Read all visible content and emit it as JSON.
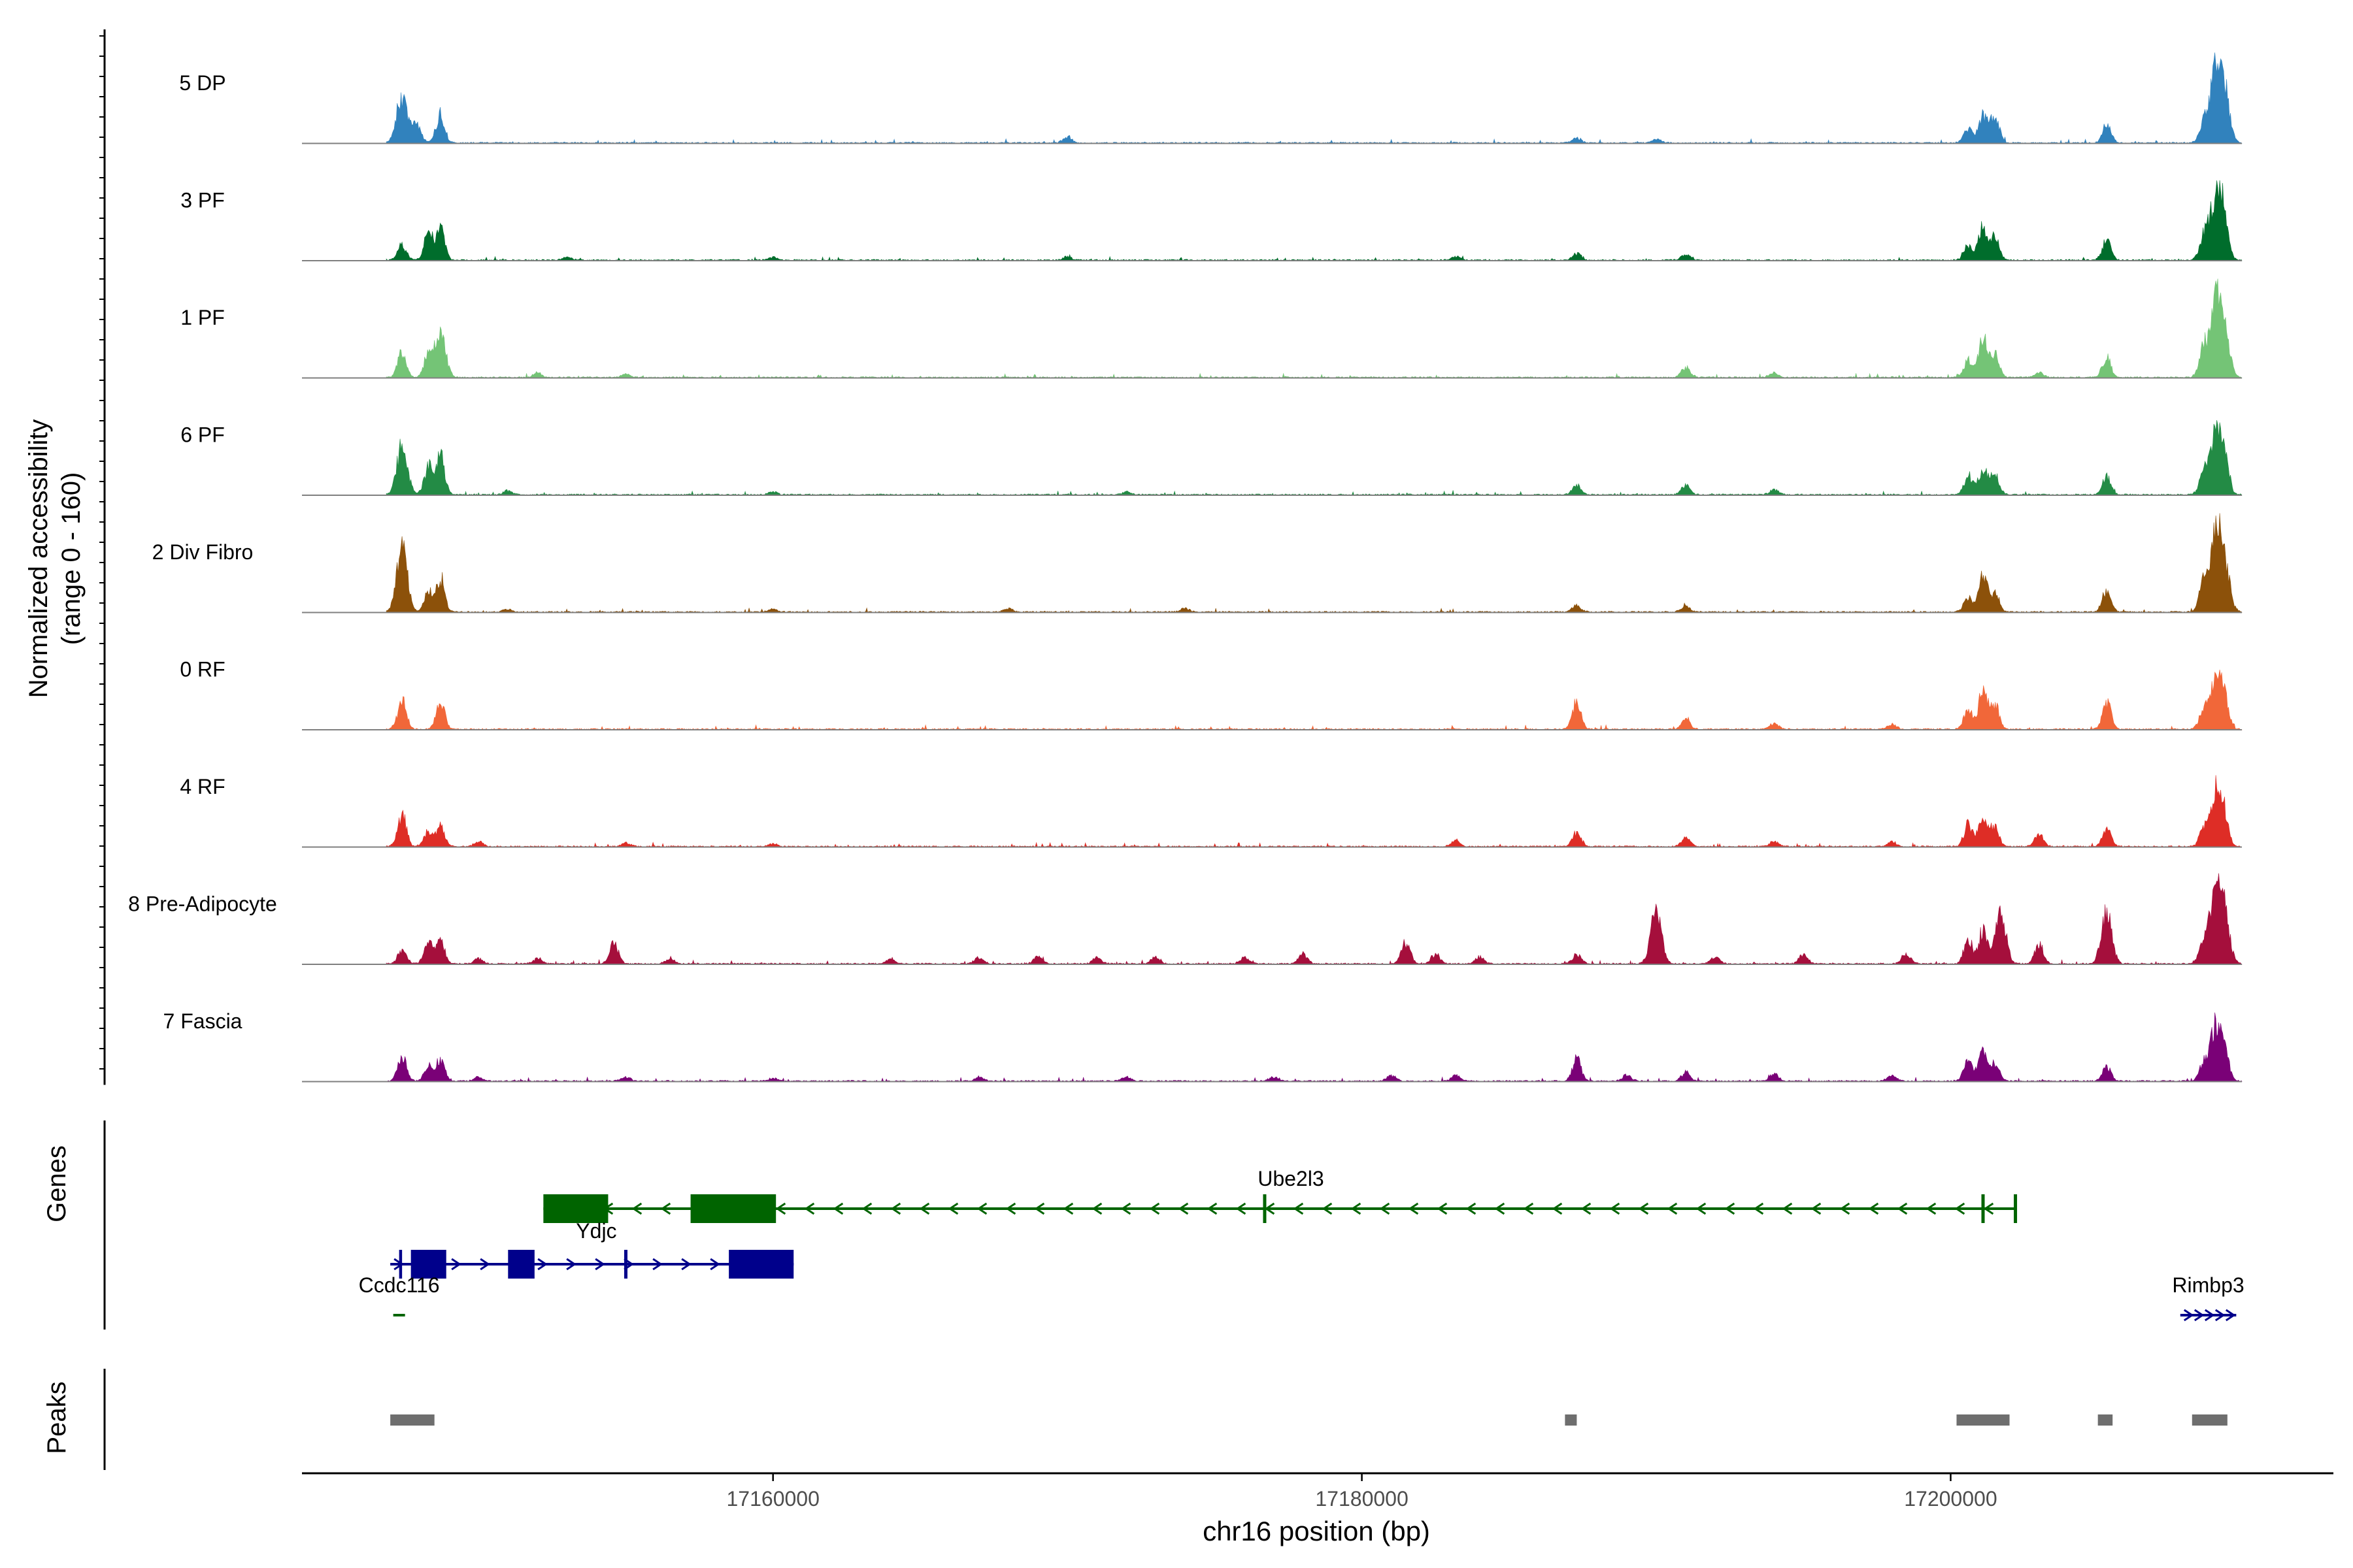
{
  "chart_data": {
    "type": "area",
    "chromosome": "chr16",
    "xlabel": "chr16 position (bp)",
    "ylabel_line1": "Normalized accessibility",
    "ylabel_line2": "(range 0 - 160)",
    "y_range": [
      0,
      160
    ],
    "x_range": [
      17144000,
      17213000
    ],
    "x_ticks": [
      17160000,
      17180000,
      17200000
    ],
    "x_tick_labels": [
      "17160000",
      "17180000",
      "17200000"
    ],
    "grid": false,
    "tracks": [
      {
        "name": "5 DP",
        "color": "#3182bd",
        "peaks": [
          [
            17147400,
            100
          ],
          [
            17148700,
            60
          ],
          [
            17147900,
            35
          ],
          [
            17170000,
            12
          ],
          [
            17187300,
            10
          ],
          [
            17190000,
            8
          ],
          [
            17201100,
            55
          ],
          [
            17201500,
            60
          ],
          [
            17200600,
            30
          ],
          [
            17205300,
            38
          ],
          [
            17208600,
            40
          ],
          [
            17209000,
            150
          ],
          [
            17209300,
            95
          ]
        ]
      },
      {
        "name": "3 PF",
        "color": "#006d2c",
        "peaks": [
          [
            17147400,
            30
          ],
          [
            17148300,
            55
          ],
          [
            17148700,
            65
          ],
          [
            17153000,
            6
          ],
          [
            17160000,
            6
          ],
          [
            17170000,
            7
          ],
          [
            17183200,
            8
          ],
          [
            17187300,
            14
          ],
          [
            17191000,
            12
          ],
          [
            17201100,
            70
          ],
          [
            17201500,
            45
          ],
          [
            17200600,
            30
          ],
          [
            17205300,
            40
          ],
          [
            17208600,
            50
          ],
          [
            17209000,
            130
          ],
          [
            17209300,
            80
          ]
        ]
      },
      {
        "name": "1 PF",
        "color": "#74c476",
        "peaks": [
          [
            17147400,
            50
          ],
          [
            17148300,
            45
          ],
          [
            17148700,
            90
          ],
          [
            17152000,
            10
          ],
          [
            17155000,
            6
          ],
          [
            17191000,
            20
          ],
          [
            17194000,
            10
          ],
          [
            17201100,
            80
          ],
          [
            17201500,
            50
          ],
          [
            17200600,
            35
          ],
          [
            17203000,
            10
          ],
          [
            17205300,
            40
          ],
          [
            17208600,
            60
          ],
          [
            17209000,
            140
          ],
          [
            17209300,
            90
          ]
        ]
      },
      {
        "name": "6 PF",
        "color": "#238b45",
        "peaks": [
          [
            17147400,
            100
          ],
          [
            17148300,
            55
          ],
          [
            17148700,
            80
          ],
          [
            17151000,
            8
          ],
          [
            17160000,
            6
          ],
          [
            17172000,
            6
          ],
          [
            17187300,
            18
          ],
          [
            17191000,
            20
          ],
          [
            17194000,
            10
          ],
          [
            17201100,
            55
          ],
          [
            17201500,
            45
          ],
          [
            17200600,
            40
          ],
          [
            17205300,
            35
          ],
          [
            17208600,
            45
          ],
          [
            17209000,
            120
          ],
          [
            17209300,
            80
          ]
        ]
      },
      {
        "name": "2 Div Fibro",
        "color": "#8c510a",
        "peaks": [
          [
            17147400,
            125
          ],
          [
            17148300,
            40
          ],
          [
            17148700,
            70
          ],
          [
            17151000,
            6
          ],
          [
            17160000,
            6
          ],
          [
            17168000,
            7
          ],
          [
            17174000,
            7
          ],
          [
            17187300,
            14
          ],
          [
            17191000,
            12
          ],
          [
            17201100,
            75
          ],
          [
            17201500,
            40
          ],
          [
            17200600,
            30
          ],
          [
            17205300,
            45
          ],
          [
            17208600,
            60
          ],
          [
            17209000,
            150
          ],
          [
            17209300,
            90
          ]
        ]
      },
      {
        "name": "0 RF",
        "color": "#f16739",
        "peaks": [
          [
            17147400,
            60
          ],
          [
            17148700,
            55
          ],
          [
            17187300,
            55
          ],
          [
            17191000,
            20
          ],
          [
            17194000,
            12
          ],
          [
            17198000,
            10
          ],
          [
            17201100,
            80
          ],
          [
            17201500,
            50
          ],
          [
            17200600,
            40
          ],
          [
            17205300,
            55
          ],
          [
            17208600,
            40
          ],
          [
            17209000,
            110
          ],
          [
            17209300,
            60
          ]
        ]
      },
      {
        "name": "4 RF",
        "color": "#de2d26",
        "peaks": [
          [
            17147400,
            65
          ],
          [
            17148300,
            30
          ],
          [
            17148700,
            40
          ],
          [
            17150000,
            10
          ],
          [
            17155000,
            8
          ],
          [
            17160000,
            6
          ],
          [
            17183200,
            12
          ],
          [
            17187300,
            30
          ],
          [
            17191000,
            18
          ],
          [
            17194000,
            10
          ],
          [
            17198000,
            10
          ],
          [
            17201100,
            65
          ],
          [
            17201500,
            40
          ],
          [
            17200600,
            45
          ],
          [
            17203000,
            25
          ],
          [
            17205300,
            35
          ],
          [
            17208600,
            35
          ],
          [
            17209000,
            110
          ],
          [
            17209300,
            60
          ]
        ]
      },
      {
        "name": "8 Pre-Adipocyte",
        "color": "#a50f3c",
        "peaks": [
          [
            17147400,
            30
          ],
          [
            17148300,
            40
          ],
          [
            17148700,
            50
          ],
          [
            17150000,
            10
          ],
          [
            17152000,
            12
          ],
          [
            17154600,
            45
          ],
          [
            17156500,
            12
          ],
          [
            17164000,
            10
          ],
          [
            17167000,
            12
          ],
          [
            17169000,
            15
          ],
          [
            17171000,
            12
          ],
          [
            17173000,
            15
          ],
          [
            17176000,
            12
          ],
          [
            17178000,
            20
          ],
          [
            17181500,
            45
          ],
          [
            17182500,
            20
          ],
          [
            17184000,
            15
          ],
          [
            17187300,
            20
          ],
          [
            17190000,
            110
          ],
          [
            17192000,
            15
          ],
          [
            17195000,
            20
          ],
          [
            17198500,
            20
          ],
          [
            17201100,
            70
          ],
          [
            17201700,
            100
          ],
          [
            17200600,
            50
          ],
          [
            17203000,
            40
          ],
          [
            17205300,
            100
          ],
          [
            17208600,
            45
          ],
          [
            17209000,
            160
          ],
          [
            17209300,
            90
          ]
        ]
      },
      {
        "name": "7 Fascia",
        "color": "#7a0177",
        "peaks": [
          [
            17147400,
            50
          ],
          [
            17148300,
            30
          ],
          [
            17148700,
            45
          ],
          [
            17150000,
            8
          ],
          [
            17155000,
            8
          ],
          [
            17160000,
            6
          ],
          [
            17167000,
            8
          ],
          [
            17172000,
            8
          ],
          [
            17177000,
            8
          ],
          [
            17181000,
            12
          ],
          [
            17183200,
            12
          ],
          [
            17187300,
            45
          ],
          [
            17189000,
            12
          ],
          [
            17191000,
            18
          ],
          [
            17194000,
            15
          ],
          [
            17198000,
            12
          ],
          [
            17201100,
            60
          ],
          [
            17201500,
            35
          ],
          [
            17200600,
            40
          ],
          [
            17205300,
            30
          ],
          [
            17208600,
            35
          ],
          [
            17209000,
            110
          ],
          [
            17209300,
            60
          ]
        ]
      }
    ],
    "genes_panel_label": "Genes",
    "peaks_panel_label": "Peaks",
    "genes": [
      {
        "name": "Ube2l3",
        "strand": "-",
        "color": "#006400",
        "start": 17152200,
        "end": 17202200,
        "row": 0,
        "exons": [
          [
            17152200,
            17154400
          ],
          [
            17157200,
            17160100
          ]
        ],
        "marks": [
          17176700,
          17201100,
          17202200
        ]
      },
      {
        "name": "Ydjc",
        "strand": "+",
        "color": "#00008b",
        "start": 17147000,
        "end": 17160700,
        "row": 1,
        "exons": [
          [
            17147300,
            17147400
          ],
          [
            17147700,
            17148900
          ],
          [
            17151000,
            17151900
          ],
          [
            17158500,
            17160700
          ]
        ],
        "marks": [
          17155000
        ]
      },
      {
        "name": "Ccdc116",
        "strand": "-",
        "color": "#006400",
        "start": 17147100,
        "end": 17147500,
        "row": 2,
        "exons": [],
        "marks": []
      },
      {
        "name": "Rimbp3",
        "strand": "+",
        "color": "#00008b",
        "start": 17207800,
        "end": 17209700,
        "row": 2,
        "exons": [],
        "marks": []
      }
    ],
    "peak_regions": [
      [
        17147000,
        17148500
      ],
      [
        17186900,
        17187300
      ],
      [
        17200200,
        17202000
      ],
      [
        17205000,
        17205500
      ],
      [
        17208200,
        17209400
      ]
    ]
  }
}
